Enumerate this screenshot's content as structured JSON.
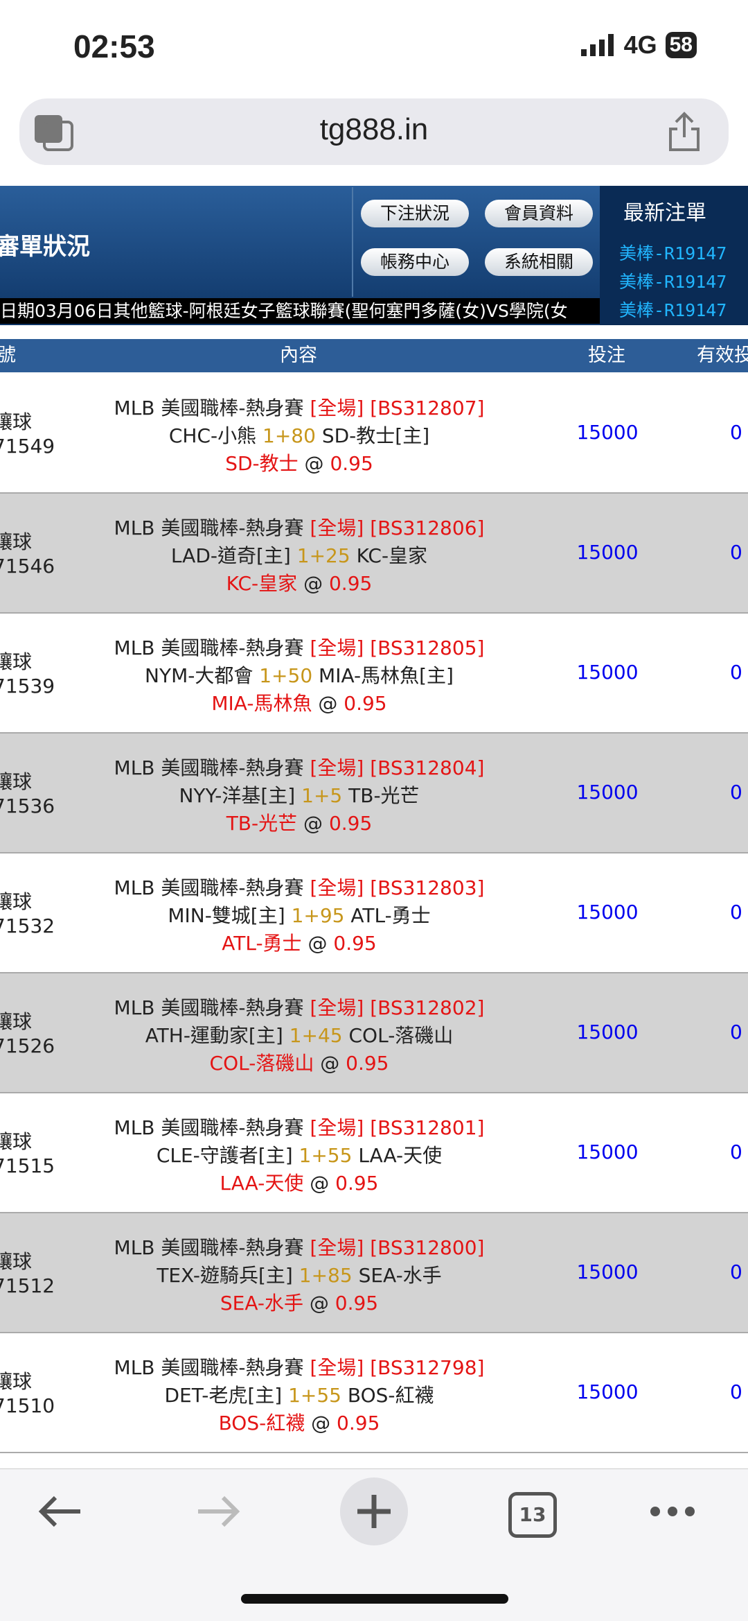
{
  "status": {
    "time": "02:53",
    "network": "4G",
    "battery": "58"
  },
  "browser": {
    "url": "tg888.in",
    "tab_count": "13"
  },
  "header": {
    "title": "審單狀況",
    "buttons": [
      "下注狀況",
      "會員資料",
      "帳務中心",
      "系統相關"
    ],
    "recent_title": "最新注單",
    "recent_items": [
      "美棒-R19147",
      "美棒-R19147",
      "美棒-R19147"
    ],
    "marquee": "日期03月06日其他籃球-阿根廷女子籃球聯賽(聖何塞門多薩(女)VS學院(女"
  },
  "table": {
    "headers": [
      "號",
      "內容",
      "投注",
      "有效投"
    ],
    "rows": [
      {
        "type": "讓球",
        "id": "71549",
        "league": "MLB 美國職棒-熱身賽",
        "period": "[全場]",
        "code": "[BS312807]",
        "team1": "CHC-小熊",
        "handicap": "1+80",
        "team2": "SD-教士[主]",
        "pick": "SD-教士",
        "at": "@",
        "odds": "0.95",
        "bet": "15000",
        "valid": "0"
      },
      {
        "type": "讓球",
        "id": "71546",
        "league": "MLB 美國職棒-熱身賽",
        "period": "[全場]",
        "code": "[BS312806]",
        "team1": "LAD-道奇[主]",
        "handicap": "1+25",
        "team2": "KC-皇家",
        "pick": "KC-皇家",
        "at": "@",
        "odds": "0.95",
        "bet": "15000",
        "valid": "0"
      },
      {
        "type": "讓球",
        "id": "71539",
        "league": "MLB 美國職棒-熱身賽",
        "period": "[全場]",
        "code": "[BS312805]",
        "team1": "NYM-大都會",
        "handicap": "1+50",
        "team2": "MIA-馬林魚[主]",
        "pick": "MIA-馬林魚",
        "at": "@",
        "odds": "0.95",
        "bet": "15000",
        "valid": "0"
      },
      {
        "type": "讓球",
        "id": "71536",
        "league": "MLB 美國職棒-熱身賽",
        "period": "[全場]",
        "code": "[BS312804]",
        "team1": "NYY-洋基[主]",
        "handicap": "1+5",
        "team2": "TB-光芒",
        "pick": "TB-光芒",
        "at": "@",
        "odds": "0.95",
        "bet": "15000",
        "valid": "0"
      },
      {
        "type": "讓球",
        "id": "71532",
        "league": "MLB 美國職棒-熱身賽",
        "period": "[全場]",
        "code": "[BS312803]",
        "team1": "MIN-雙城[主]",
        "handicap": "1+95",
        "team2": "ATL-勇士",
        "pick": "ATL-勇士",
        "at": "@",
        "odds": "0.95",
        "bet": "15000",
        "valid": "0"
      },
      {
        "type": "讓球",
        "id": "71526",
        "league": "MLB 美國職棒-熱身賽",
        "period": "[全場]",
        "code": "[BS312802]",
        "team1": "ATH-運動家[主]",
        "handicap": "1+45",
        "team2": "COL-落磯山",
        "pick": "COL-落磯山",
        "at": "@",
        "odds": "0.95",
        "bet": "15000",
        "valid": "0"
      },
      {
        "type": "讓球",
        "id": "71515",
        "league": "MLB 美國職棒-熱身賽",
        "period": "[全場]",
        "code": "[BS312801]",
        "team1": "CLE-守護者[主]",
        "handicap": "1+55",
        "team2": "LAA-天使",
        "pick": "LAA-天使",
        "at": "@",
        "odds": "0.95",
        "bet": "15000",
        "valid": "0"
      },
      {
        "type": "讓球",
        "id": "71512",
        "league": "MLB 美國職棒-熱身賽",
        "period": "[全場]",
        "code": "[BS312800]",
        "team1": "TEX-遊騎兵[主]",
        "handicap": "1+85",
        "team2": "SEA-水手",
        "pick": "SEA-水手",
        "at": "@",
        "odds": "0.95",
        "bet": "15000",
        "valid": "0"
      },
      {
        "type": "讓球",
        "id": "71510",
        "league": "MLB 美國職棒-熱身賽",
        "period": "[全場]",
        "code": "[BS312798]",
        "team1": "DET-老虎[主]",
        "handicap": "1+55",
        "team2": "BOS-紅襪",
        "pick": "BOS-紅襪",
        "at": "@",
        "odds": "0.95",
        "bet": "15000",
        "valid": "0"
      }
    ]
  }
}
